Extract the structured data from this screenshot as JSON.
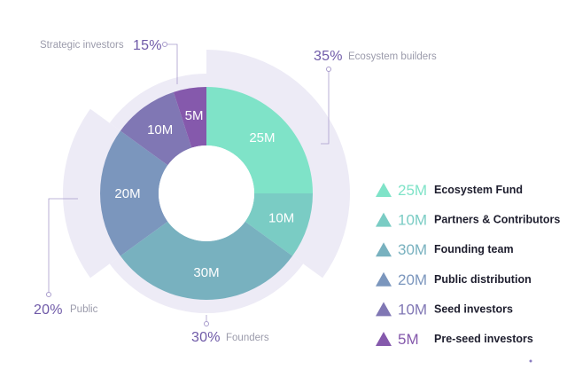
{
  "chart_data": {
    "type": "pie",
    "subtype": "donut",
    "unit": "M",
    "slices": [
      {
        "label": "Ecosystem Fund",
        "value": 25,
        "display": "25M",
        "color": "#7fe3c8"
      },
      {
        "label": "Partners & Contributors",
        "value": 10,
        "display": "10M",
        "color": "#7accc4"
      },
      {
        "label": "Founding team",
        "value": 30,
        "display": "30M",
        "color": "#78b1bf"
      },
      {
        "label": "Public distribution",
        "value": 20,
        "display": "20M",
        "color": "#7b96bd"
      },
      {
        "label": "Seed investors",
        "value": 10,
        "display": "10M",
        "color": "#8077b4"
      },
      {
        "label": "Pre-seed investors",
        "value": 5,
        "display": "5M",
        "color": "#8559ac"
      }
    ],
    "groups": [
      {
        "label": "Ecosystem builders",
        "percent": "35%",
        "value": 35
      },
      {
        "label": "Founders",
        "percent": "30%",
        "value": 30
      },
      {
        "label": "Public",
        "percent": "20%",
        "value": 20
      },
      {
        "label": "Strategic investors",
        "percent": "15%",
        "value": 15
      }
    ],
    "legend_position": "right"
  },
  "colors": {
    "group_band": "#edebf6",
    "group_percent": "#6f5aa8",
    "group_label": "#9b9bab",
    "leader": "#a89ccc"
  }
}
